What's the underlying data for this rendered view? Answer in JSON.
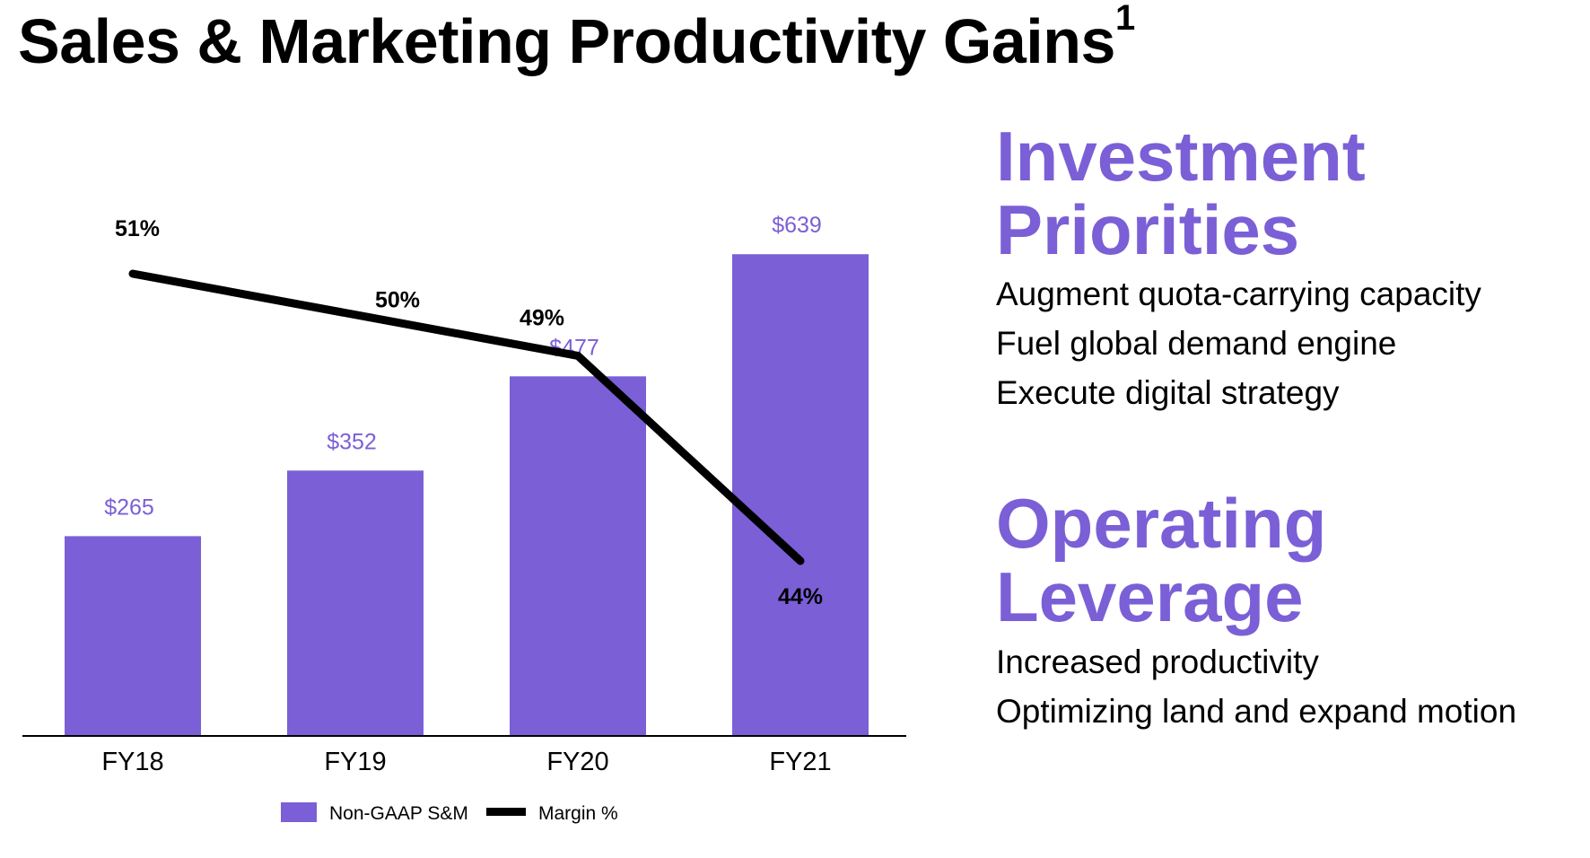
{
  "page": {
    "title": "Sales & Marketing Productivity Gains",
    "title_footnote": "1"
  },
  "right_panel": {
    "sections": [
      {
        "heading_lines": [
          "Investment",
          "Priorities"
        ],
        "items": [
          "Augment quota-carrying capacity",
          "Fuel global demand engine",
          "Execute digital strategy"
        ]
      },
      {
        "heading_lines": [
          "Operating",
          "Leverage"
        ],
        "items": [
          "Increased productivity",
          "Optimizing land and expand motion"
        ]
      }
    ],
    "heading_color": "#7b5fd6"
  },
  "chart_data": {
    "type": "bar",
    "categories": [
      "FY18",
      "FY19",
      "FY20",
      "FY21"
    ],
    "series": [
      {
        "name": "Non-GAAP S&M",
        "type": "bar",
        "values": [
          265,
          352,
          477,
          639
        ],
        "labels": [
          "$265",
          "$352",
          "$477",
          "$639"
        ],
        "color": "#7b5fd6",
        "label_color": "#7b5fd6"
      },
      {
        "name": "Margin %",
        "type": "line",
        "values": [
          51,
          50,
          49,
          44
        ],
        "labels": [
          "51%",
          "50%",
          "49%",
          "44%"
        ],
        "color": "#000000"
      }
    ],
    "bar_ylim": [
      0,
      800
    ],
    "line_ylim": [
      40,
      54
    ],
    "legend_position": "bottom-center",
    "grid": false
  }
}
